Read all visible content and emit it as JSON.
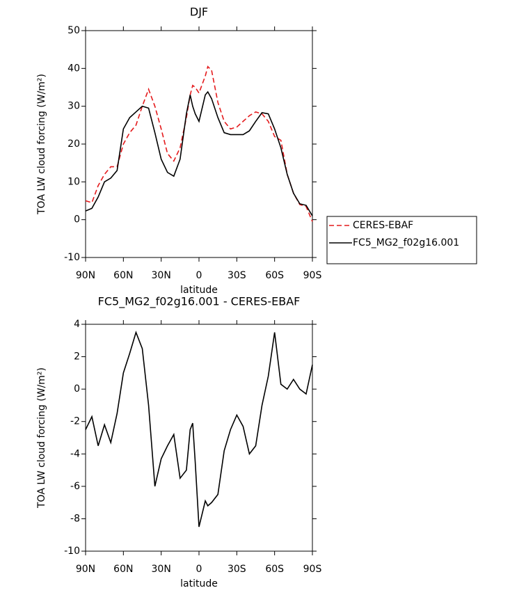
{
  "chart_data": [
    {
      "type": "line",
      "title": "DJF",
      "xlabel": "latitude",
      "ylabel": "TOA LW cloud forcing (W/m²)",
      "x": [
        90,
        85,
        80,
        75,
        70,
        65,
        60,
        55,
        50,
        45,
        40,
        35,
        30,
        25,
        20,
        15,
        10,
        7,
        5,
        3,
        0,
        -5,
        -7,
        -10,
        -15,
        -20,
        -25,
        -30,
        -35,
        -40,
        -45,
        -50,
        -55,
        -60,
        -65,
        -70,
        -75,
        -80,
        -85,
        -90
      ],
      "xlim": [
        90,
        -90
      ],
      "xticks": [
        {
          "value": 90,
          "label": "90N"
        },
        {
          "value": 60,
          "label": "60N"
        },
        {
          "value": 30,
          "label": "30N"
        },
        0,
        {
          "value": -30,
          "label": "30S"
        },
        {
          "value": -60,
          "label": "60S"
        },
        {
          "value": -90,
          "label": "90S"
        }
      ],
      "ylim": [
        -10,
        50
      ],
      "yticks": [
        -10,
        0,
        10,
        20,
        30,
        40,
        50
      ],
      "legend": "right",
      "series": [
        {
          "name": "CERES-EBAF",
          "color": "#e41a1c",
          "dashed": true,
          "values": [
            5,
            4.5,
            9,
            12,
            14,
            14,
            20,
            23,
            25,
            30,
            34.5,
            30,
            24,
            17.5,
            15.5,
            19,
            27,
            33,
            35.5,
            35,
            33.5,
            38,
            40.5,
            39.5,
            31,
            26,
            24,
            24.5,
            26,
            27.5,
            28.5,
            28,
            26,
            22,
            21,
            12,
            7,
            4,
            3.5,
            -0.5
          ]
        },
        {
          "name": "FC5_MG2_f02g16.001",
          "color": "#000000",
          "dashed": false,
          "values": [
            2.3,
            3,
            6,
            10,
            11,
            13,
            24,
            27,
            28.5,
            30,
            29.5,
            23,
            16,
            12.5,
            11.5,
            16,
            28,
            33,
            30,
            28,
            26,
            33,
            33.8,
            32,
            27,
            23,
            22.5,
            22.5,
            22.5,
            23.5,
            26,
            28.3,
            28,
            24,
            19,
            12,
            7,
            4.2,
            3.8,
            1
          ]
        }
      ]
    },
    {
      "type": "line",
      "title": "FC5_MG2_f02g16.001 - CERES-EBAF",
      "xlabel": "latitude",
      "ylabel": "TOA LW cloud forcing (W/m²)",
      "x": [
        90,
        85,
        80,
        75,
        70,
        65,
        60,
        55,
        50,
        45,
        40,
        35,
        30,
        25,
        20,
        15,
        10,
        7,
        5,
        3,
        0,
        -5,
        -7,
        -10,
        -15,
        -20,
        -25,
        -30,
        -35,
        -40,
        -45,
        -50,
        -55,
        -60,
        -65,
        -70,
        -75,
        -80,
        -85,
        -90
      ],
      "xlim": [
        90,
        -90
      ],
      "xticks": [
        {
          "value": 90,
          "label": "90N"
        },
        {
          "value": 60,
          "label": "60N"
        },
        {
          "value": 30,
          "label": "30N"
        },
        0,
        {
          "value": -30,
          "label": "30S"
        },
        {
          "value": -60,
          "label": "60S"
        },
        {
          "value": -90,
          "label": "90S"
        }
      ],
      "ylim": [
        -10,
        4
      ],
      "yticks": [
        -10,
        -8,
        -6,
        -4,
        -2,
        0,
        2,
        4
      ],
      "color": "#000000",
      "values": [
        -2.5,
        -1.7,
        -3.5,
        -2.2,
        -3.3,
        -1.5,
        1,
        2.2,
        3.5,
        2.5,
        -1,
        -6,
        -4.3,
        -3.5,
        -2.8,
        -5.5,
        -5,
        -2.5,
        -2.1,
        -4.5,
        -8.5,
        -6.9,
        -7.2,
        -7,
        -6.5,
        -3.8,
        -2.5,
        -1.6,
        -2.3,
        -4,
        -3.5,
        -1,
        0.8,
        3.5,
        0.3,
        0,
        0.6,
        0,
        -0.3,
        1.5
      ]
    }
  ]
}
